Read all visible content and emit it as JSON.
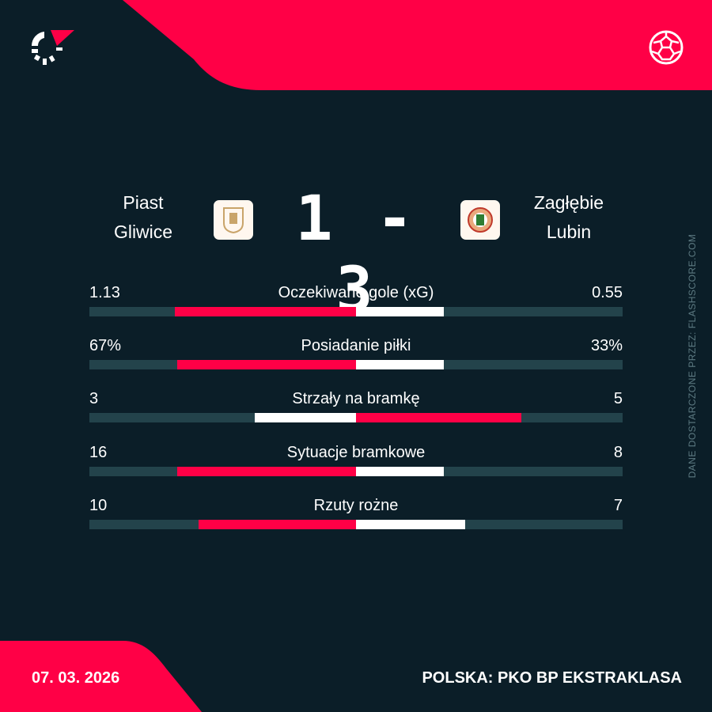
{
  "colors": {
    "background": "#0b1e28",
    "accent": "#ff0046",
    "track": "#23434b",
    "away_bar": "#ffffff"
  },
  "header": {
    "logo_icon": "flashscore-logo",
    "sport_icon": "football-icon"
  },
  "match": {
    "home_team_line1": "Piast",
    "home_team_line2": "Gliwice",
    "away_team_line1": "Zagłębie",
    "away_team_line2": "Lubin",
    "home_score": "1",
    "separator": "-",
    "away_score": "3"
  },
  "stats": [
    {
      "label": "Oczekiwane gole (xG)",
      "home": "1.13",
      "away": "0.55",
      "home_fill": 0.68,
      "away_fill": 0.33,
      "leader": "home"
    },
    {
      "label": "Posiadanie piłki",
      "home": "67%",
      "away": "33%",
      "home_fill": 0.67,
      "away_fill": 0.33,
      "leader": "home"
    },
    {
      "label": "Strzały na bramkę",
      "home": "3",
      "away": "5",
      "home_fill": 0.38,
      "away_fill": 0.62,
      "leader": "away"
    },
    {
      "label": "Sytuacje bramkowe",
      "home": "16",
      "away": "8",
      "home_fill": 0.67,
      "away_fill": 0.33,
      "leader": "home"
    },
    {
      "label": "Rzuty rożne",
      "home": "10",
      "away": "7",
      "home_fill": 0.59,
      "away_fill": 0.41,
      "leader": "home"
    }
  ],
  "side_note": "DANE DOSTARCZONE PRZEZ: FLASHSCORE.COM",
  "footer": {
    "date": "07. 03. 2026",
    "league": "POLSKA: PKO BP EKSTRAKLASA"
  }
}
